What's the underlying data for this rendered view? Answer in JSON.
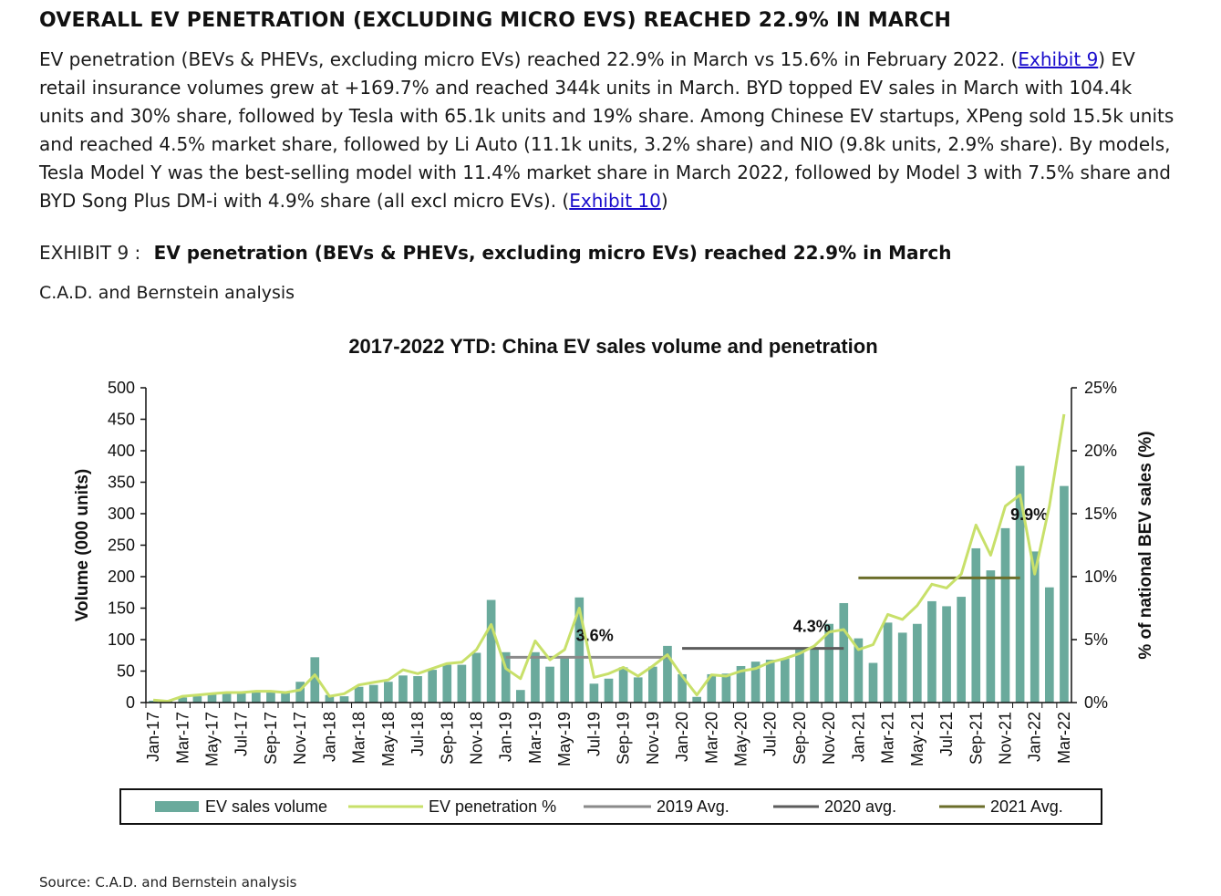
{
  "headline": "OVERALL EV PENETRATION (EXCLUDING MICRO EVS) REACHED 22.9% IN MARCH",
  "paragraph": {
    "part1": "EV penetration (BEVs & PHEVs, excluding micro EVs) reached 22.9% in March vs 15.6% in February 2022. (",
    "link1": "Exhibit 9",
    "part2": ") EV retail insurance volumes grew at +169.7% and reached 344k units in March. BYD topped EV sales in March with 104.4k units and 30% share, followed by Tesla with 65.1k units and 19% share. Among Chinese EV startups, XPeng sold 15.5k units and reached 4.5% market share, followed by Li Auto (11.1k units, 3.2% share) and NIO (9.8k units, 2.9% share). By models, Tesla Model Y was the best-selling model with 11.4% market share in March 2022, followed by Model 3 with 7.5% share and BYD Song Plus DM-i with 4.9% share (all excl micro EVs). (",
    "link2": "Exhibit 10",
    "part3": ")"
  },
  "exhibit": {
    "label": "EXHIBIT 9 :",
    "title": "EV penetration (BEVs & PHEVs, excluding micro EVs) reached 22.9% in March",
    "source": "C.A.D. and Bernstein analysis"
  },
  "footer": "Source: C.A.D. and Bernstein analysis",
  "colors": {
    "bar": "#6aaa9c",
    "line": "#c8e06a",
    "avg2019": "#8a8a8a",
    "avg2020": "#5c5c5c",
    "avg2021": "#6b6e2a"
  },
  "chart_data": {
    "type": "bar",
    "title": "2017-2022 YTD: China EV sales volume and penetration",
    "ylabel": "Volume (000 units)",
    "y2label": "% of national BEV sales (%)",
    "ylim": [
      0,
      500
    ],
    "y2lim": [
      0,
      25
    ],
    "yticks": [
      "0",
      "50",
      "100",
      "150",
      "200",
      "250",
      "300",
      "350",
      "400",
      "450",
      "500"
    ],
    "y2ticks": [
      "0%",
      "5%",
      "10%",
      "15%",
      "20%",
      "25%"
    ],
    "categories": [
      "Jan-17",
      "Feb-17",
      "Mar-17",
      "Apr-17",
      "May-17",
      "Jun-17",
      "Jul-17",
      "Aug-17",
      "Sep-17",
      "Oct-17",
      "Nov-17",
      "Dec-17",
      "Jan-18",
      "Feb-18",
      "Mar-18",
      "Apr-18",
      "May-18",
      "Jun-18",
      "Jul-18",
      "Aug-18",
      "Sep-18",
      "Oct-18",
      "Nov-18",
      "Dec-18",
      "Jan-19",
      "Feb-19",
      "Mar-19",
      "Apr-19",
      "May-19",
      "Jun-19",
      "Jul-19",
      "Aug-19",
      "Sep-19",
      "Oct-19",
      "Nov-19",
      "Dec-19",
      "Jan-20",
      "Feb-20",
      "Mar-20",
      "Apr-20",
      "May-20",
      "Jun-20",
      "Jul-20",
      "Aug-20",
      "Sep-20",
      "Oct-20",
      "Nov-20",
      "Dec-20",
      "Jan-21",
      "Feb-21",
      "Mar-21",
      "Apr-21",
      "May-21",
      "Jun-21",
      "Jul-21",
      "Aug-21",
      "Sep-21",
      "Oct-21",
      "Nov-21",
      "Dec-21",
      "Jan-22",
      "Feb-22",
      "Mar-22"
    ],
    "series": [
      {
        "name": "EV sales volume",
        "kind": "bar",
        "values": [
          3,
          4,
          8,
          10,
          13,
          15,
          15,
          16,
          17,
          17,
          33,
          72,
          12,
          10,
          25,
          28,
          33,
          43,
          42,
          52,
          60,
          60,
          79,
          163,
          80,
          20,
          80,
          57,
          72,
          167,
          30,
          38,
          56,
          40,
          57,
          90,
          45,
          9,
          45,
          46,
          58,
          65,
          68,
          70,
          85,
          86,
          125,
          158,
          102,
          63,
          127,
          111,
          125,
          161,
          153,
          168,
          245,
          210,
          277,
          376,
          240,
          183,
          344
        ]
      },
      {
        "name": "EV penetration %",
        "kind": "line",
        "values": [
          0.2,
          0.1,
          0.5,
          0.6,
          0.7,
          0.8,
          0.8,
          0.9,
          0.9,
          0.8,
          1.0,
          2.2,
          0.5,
          0.7,
          1.4,
          1.6,
          1.8,
          2.6,
          2.3,
          2.7,
          3.1,
          3.2,
          4.2,
          6.2,
          2.7,
          1.9,
          4.9,
          3.4,
          4.2,
          7.5,
          2.0,
          2.3,
          2.8,
          2.1,
          2.9,
          3.8,
          2.1,
          0.6,
          2.2,
          2.1,
          2.5,
          2.7,
          3.2,
          3.5,
          3.9,
          4.5,
          5.6,
          5.8,
          4.2,
          4.6,
          7.0,
          6.6,
          7.7,
          9.4,
          9.1,
          10.2,
          14.1,
          11.7,
          15.6,
          16.5,
          10.2,
          15.6,
          22.9
        ]
      }
    ],
    "averages": [
      {
        "name": "2019 Avg.",
        "value": 3.6,
        "label": "3.6%",
        "from": "Jan-19",
        "to": "Dec-19"
      },
      {
        "name": "2020 avg.",
        "value": 4.3,
        "label": "4.3%",
        "from": "Jan-20",
        "to": "Dec-20"
      },
      {
        "name": "2021 Avg.",
        "value": 9.9,
        "label": "9.9%",
        "from": "Jan-21",
        "to": "Dec-21"
      }
    ],
    "legend": [
      "EV sales volume",
      "EV penetration %",
      "2019 Avg.",
      "2020 avg.",
      "2021 Avg."
    ],
    "legend_position": "bottom",
    "grid": false
  }
}
